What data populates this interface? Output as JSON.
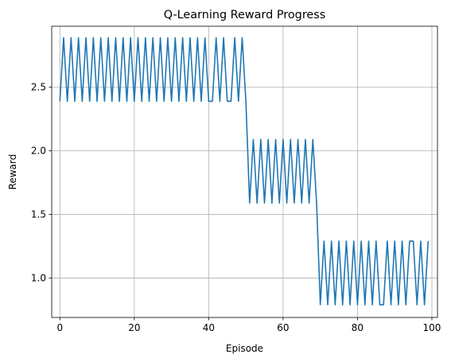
{
  "chart_data": {
    "type": "line",
    "title": "Q-Learning Reward Progress",
    "xlabel": "Episode",
    "ylabel": "Reward",
    "xlim": [
      -2.2,
      101.5
    ],
    "ylim": [
      0.69,
      2.98
    ],
    "xticks": [
      0,
      20,
      40,
      60,
      80,
      100
    ],
    "yticks": [
      1.0,
      1.5,
      2.0,
      2.5
    ],
    "ytick_labels": [
      "1.0",
      "1.5",
      "2.0",
      "2.5"
    ],
    "grid": true,
    "legend": "none",
    "colors": {
      "line": "#1f77b4",
      "grid": "#b0b0b0",
      "axes": "#000000"
    },
    "series": [
      {
        "x": [
          0,
          1,
          2,
          3,
          4,
          5,
          6,
          7,
          8,
          9,
          10,
          11,
          12,
          13,
          14,
          15,
          16,
          17,
          18,
          19,
          20,
          21,
          22,
          23,
          24,
          25,
          26,
          27,
          28,
          29,
          30,
          31,
          32,
          33,
          34,
          35,
          36,
          37,
          38,
          39,
          40,
          41,
          42,
          43,
          44,
          45,
          46,
          47,
          48,
          49,
          50,
          51,
          52,
          53,
          54,
          55,
          56,
          57,
          58,
          59,
          60,
          61,
          62,
          63,
          64,
          65,
          66,
          67,
          68,
          69,
          70,
          71,
          72,
          73,
          74,
          75,
          76,
          77,
          78,
          79,
          80,
          81,
          82,
          83,
          84,
          85,
          86,
          87,
          88,
          89,
          90,
          91,
          92,
          93,
          94,
          95,
          96,
          97,
          98,
          99
        ],
        "values": [
          2.39,
          2.89,
          2.39,
          2.89,
          2.39,
          2.89,
          2.39,
          2.89,
          2.39,
          2.89,
          2.39,
          2.89,
          2.39,
          2.89,
          2.39,
          2.89,
          2.39,
          2.89,
          2.39,
          2.89,
          2.39,
          2.89,
          2.39,
          2.89,
          2.39,
          2.89,
          2.39,
          2.89,
          2.39,
          2.89,
          2.39,
          2.89,
          2.39,
          2.89,
          2.39,
          2.89,
          2.39,
          2.89,
          2.39,
          2.89,
          2.39,
          2.39,
          2.89,
          2.39,
          2.89,
          2.39,
          2.39,
          2.89,
          2.39,
          2.89,
          2.39,
          1.59,
          2.09,
          1.59,
          2.09,
          1.59,
          2.09,
          1.59,
          2.09,
          1.59,
          2.09,
          1.59,
          2.09,
          1.59,
          2.09,
          1.59,
          2.09,
          1.59,
          2.09,
          1.59,
          0.79,
          1.29,
          0.79,
          1.29,
          0.79,
          1.29,
          0.79,
          1.29,
          0.79,
          1.29,
          0.79,
          1.29,
          0.79,
          1.29,
          0.79,
          1.29,
          0.79,
          0.79,
          1.29,
          0.79,
          1.29,
          0.79,
          1.29,
          0.79,
          1.29,
          1.29,
          0.79,
          1.29,
          0.79,
          1.29
        ]
      }
    ]
  }
}
